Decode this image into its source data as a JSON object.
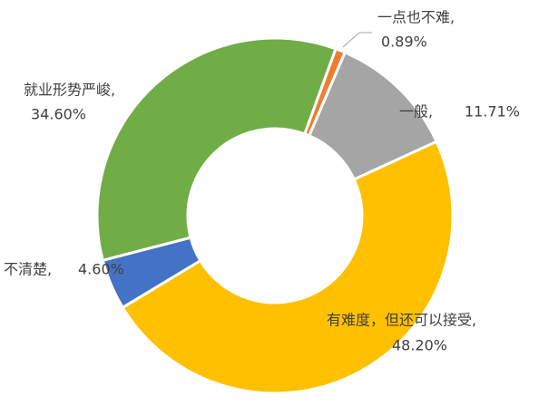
{
  "chart_data": {
    "type": "donut",
    "categories": [
      "一点也不难,",
      "一般,",
      "有难度，但还可以接受,",
      "不清楚,",
      "就业形势严峻,"
    ],
    "values": [
      0.89,
      11.71,
      48.2,
      4.6,
      34.6
    ],
    "value_labels": [
      "0.89%",
      "11.71%",
      "48.20%",
      "4.60%",
      "34.60%"
    ],
    "colors": [
      "#ED7D31",
      "#A5A5A5",
      "#FFC000",
      "#4472C4",
      "#70AD47"
    ]
  }
}
